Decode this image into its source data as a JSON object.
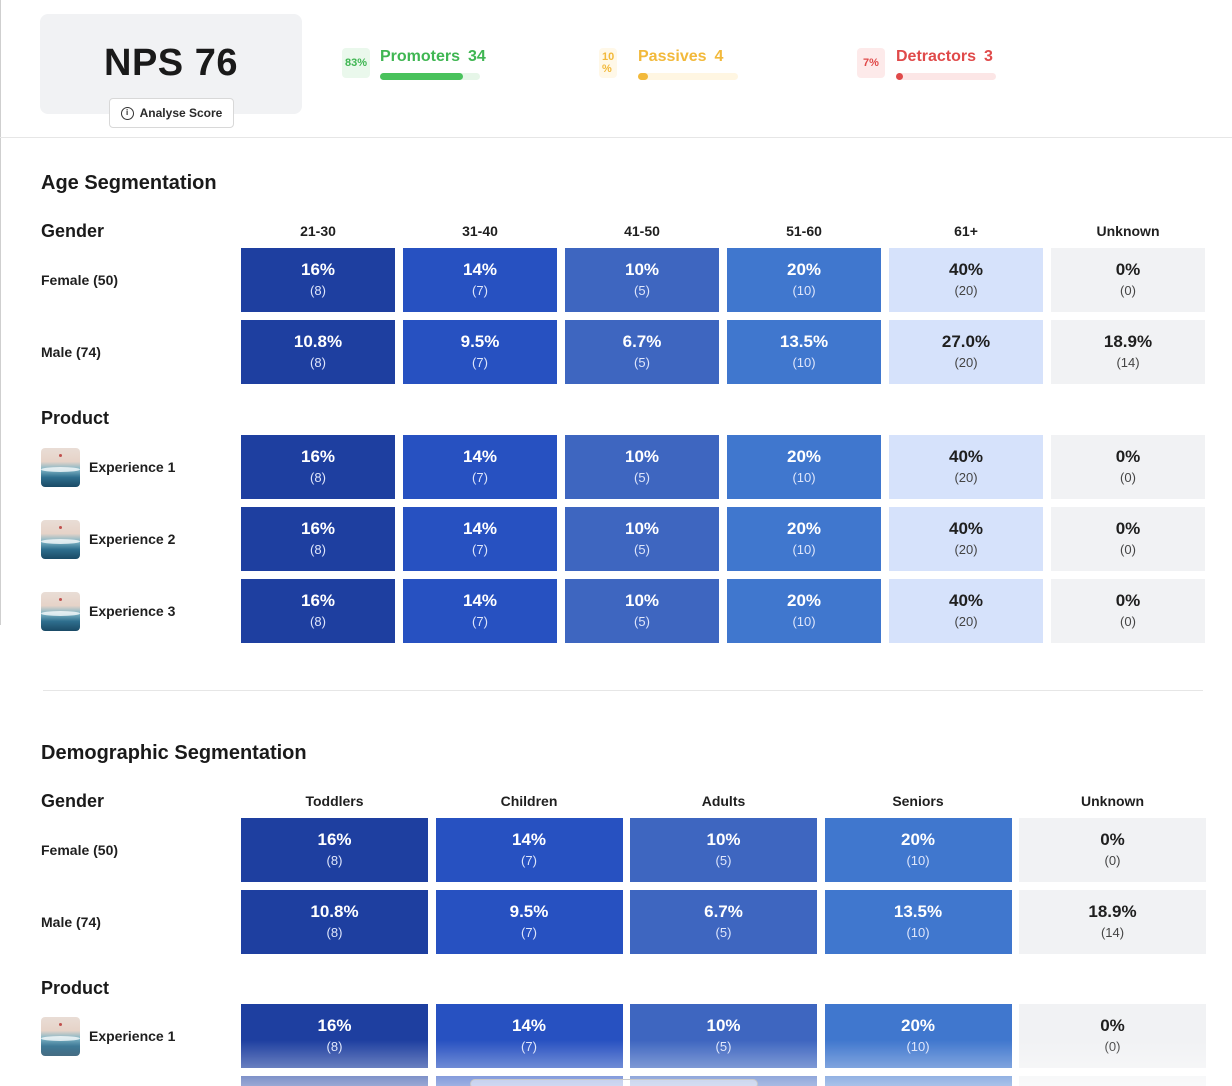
{
  "header": {
    "nps_title": "NPS 76",
    "analyse_label": "Analyse Score",
    "stats": [
      {
        "key": "promoters",
        "pct": "83%",
        "label": "Promoters",
        "count": "34",
        "fill": 0.83,
        "color": "#49c25c"
      },
      {
        "key": "passives",
        "pct": "10 %",
        "label": "Passives",
        "count": "4",
        "fill": 0.1,
        "color": "#f2b93b"
      },
      {
        "key": "detractors",
        "pct": "7%",
        "label": "Detractors",
        "count": "3",
        "fill": 0.07,
        "color": "#e04a4a"
      }
    ]
  },
  "age": {
    "title": "Age Segmentation",
    "gender_title": "Gender",
    "product_title": "Product",
    "columns": [
      "21-30",
      "31-40",
      "41-50",
      "51-60",
      "61+",
      "Unknown"
    ],
    "gender_rows": [
      {
        "label": "Female (50)",
        "cells": [
          [
            "16%",
            "(8)"
          ],
          [
            "14%",
            "(7)"
          ],
          [
            "10%",
            "(5)"
          ],
          [
            "20%",
            "(10)"
          ],
          [
            "40%",
            "(20)"
          ],
          [
            "0%",
            "(0)"
          ]
        ]
      },
      {
        "label": "Male (74)",
        "cells": [
          [
            "10.8%",
            "(8)"
          ],
          [
            "9.5%",
            "(7)"
          ],
          [
            "6.7%",
            "(5)"
          ],
          [
            "13.5%",
            "(10)"
          ],
          [
            "27.0%",
            "(20)"
          ],
          [
            "18.9%",
            "(14)"
          ]
        ]
      }
    ],
    "product_rows": [
      {
        "label": "Experience 1",
        "cells": [
          [
            "16%",
            "(8)"
          ],
          [
            "14%",
            "(7)"
          ],
          [
            "10%",
            "(5)"
          ],
          [
            "20%",
            "(10)"
          ],
          [
            "40%",
            "(20)"
          ],
          [
            "0%",
            "(0)"
          ]
        ]
      },
      {
        "label": "Experience 2",
        "cells": [
          [
            "16%",
            "(8)"
          ],
          [
            "14%",
            "(7)"
          ],
          [
            "10%",
            "(5)"
          ],
          [
            "20%",
            "(10)"
          ],
          [
            "40%",
            "(20)"
          ],
          [
            "0%",
            "(0)"
          ]
        ]
      },
      {
        "label": "Experience 3",
        "cells": [
          [
            "16%",
            "(8)"
          ],
          [
            "14%",
            "(7)"
          ],
          [
            "10%",
            "(5)"
          ],
          [
            "20%",
            "(10)"
          ],
          [
            "40%",
            "(20)"
          ],
          [
            "0%",
            "(0)"
          ]
        ]
      }
    ]
  },
  "demo": {
    "title": "Demographic Segmentation",
    "gender_title": "Gender",
    "product_title": "Product",
    "columns": [
      "Toddlers",
      "Children",
      "Adults",
      "Seniors",
      "Unknown"
    ],
    "gender_rows": [
      {
        "label": "Female (50)",
        "cells": [
          [
            "16%",
            "(8)"
          ],
          [
            "14%",
            "(7)"
          ],
          [
            "10%",
            "(5)"
          ],
          [
            "20%",
            "(10)"
          ],
          [
            "0%",
            "(0)"
          ]
        ]
      },
      {
        "label": "Male (74)",
        "cells": [
          [
            "10.8%",
            "(8)"
          ],
          [
            "9.5%",
            "(7)"
          ],
          [
            "6.7%",
            "(5)"
          ],
          [
            "13.5%",
            "(10)"
          ],
          [
            "18.9%",
            "(14)"
          ]
        ]
      }
    ],
    "product_rows": [
      {
        "label": "Experience 1",
        "cells": [
          [
            "16%",
            "(8)"
          ],
          [
            "14%",
            "(7)"
          ],
          [
            "10%",
            "(5)"
          ],
          [
            "20%",
            "(10)"
          ],
          [
            "0%",
            "(0)"
          ]
        ]
      }
    ]
  }
}
